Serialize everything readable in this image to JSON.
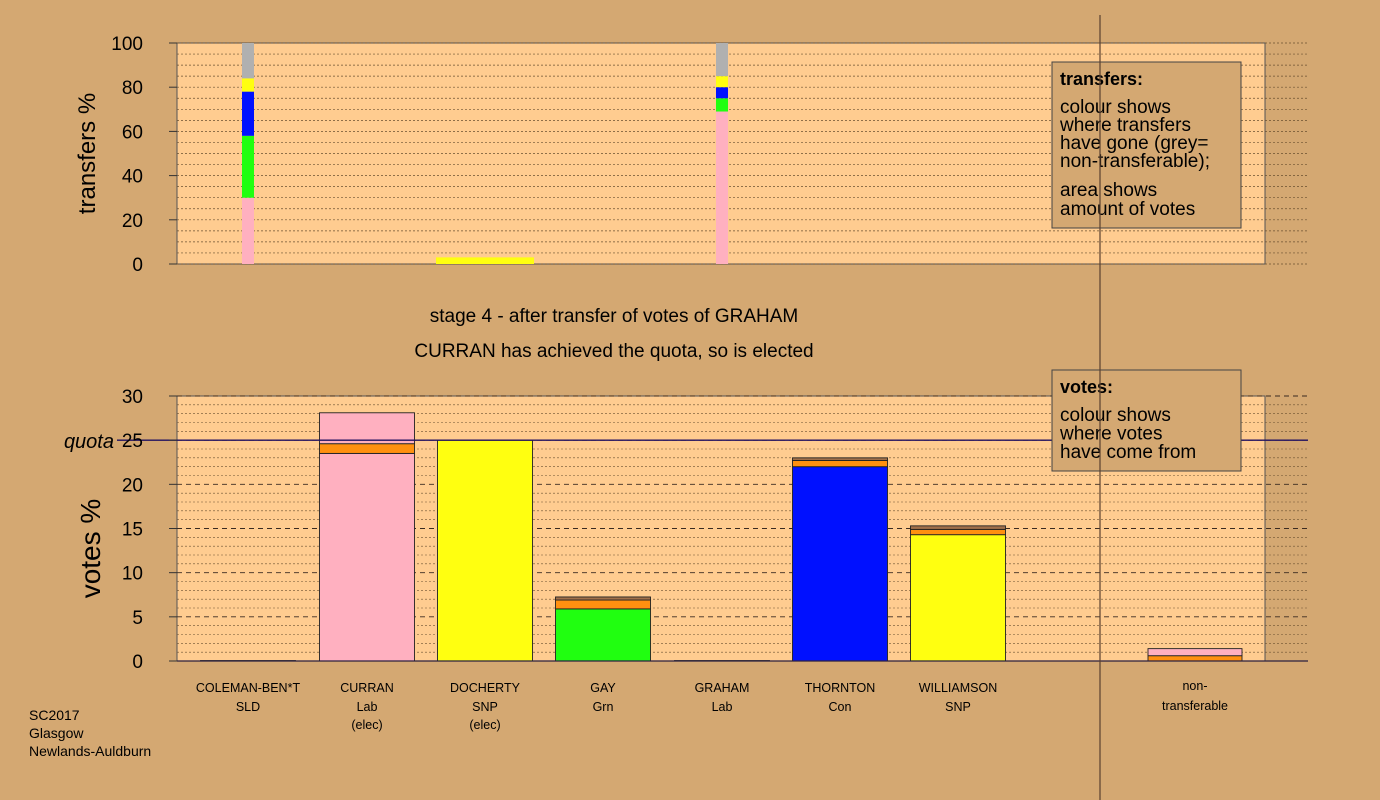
{
  "stage_title": "stage 4 - after transfer of votes of GRAHAM",
  "stage_subtitle": "CURRAN has achieved the quota, so is elected",
  "footer": [
    "SC2017",
    "Glasgow",
    "Newlands-Auldburn"
  ],
  "colors": {
    "background": "#d4a872",
    "plot_bg": "#ffcc90",
    "Lab": "#ffb0c0",
    "SNP": "#ffff10",
    "Grn": "#20ff10",
    "Con": "#0010ff",
    "SLD": "#ff9010",
    "orange": "#ff9010",
    "nontransferable": "#b0b0b0",
    "brown": "#a0704a",
    "quota_line": "#201060"
  },
  "chart_data": [
    {
      "type": "bar",
      "ylabel": "transfers %",
      "ylim": [
        0,
        100
      ],
      "yticks": [
        0,
        20,
        40,
        60,
        80,
        100
      ],
      "grid": true,
      "legend": {
        "title": "transfers:",
        "lines1": [
          "colour shows",
          "where transfers",
          "have gone (grey=",
          "non-transferable);"
        ],
        "lines2": [
          "area shows",
          "amount of votes"
        ]
      },
      "columns": [
        {
          "candidate": "COLEMAN-BEN*T",
          "segments": [
            {
              "party": "Lab",
              "value": 30
            },
            {
              "party": "Grn",
              "value": 28
            },
            {
              "party": "Con",
              "value": 20
            },
            {
              "party": "SNP",
              "value": 6
            },
            {
              "party": "nontransferable",
              "value": 16
            }
          ]
        },
        {
          "candidate": "CURRAN",
          "segments": []
        },
        {
          "candidate": "DOCHERTY",
          "segments": [
            {
              "party": "SNP",
              "value": 3
            }
          ]
        },
        {
          "candidate": "GAY",
          "segments": []
        },
        {
          "candidate": "GRAHAM",
          "segments": [
            {
              "party": "Lab",
              "value": 69
            },
            {
              "party": "Grn",
              "value": 6
            },
            {
              "party": "Con",
              "value": 5
            },
            {
              "party": "SNP",
              "value": 5
            },
            {
              "party": "nontransferable",
              "value": 15
            }
          ]
        },
        {
          "candidate": "THORNTON",
          "segments": []
        },
        {
          "candidate": "WILLIAMSON",
          "segments": []
        }
      ]
    },
    {
      "type": "bar",
      "ylabel": "votes %",
      "ylim": [
        0,
        30
      ],
      "yticks": [
        0,
        5,
        10,
        15,
        20,
        25,
        30
      ],
      "quota": 25,
      "quota_label": "quota",
      "legend": {
        "title": "votes:",
        "lines1": [
          "colour shows",
          "where votes",
          "have come from"
        ]
      },
      "categories": [
        {
          "name": "COLEMAN-BEN*T",
          "party": "SLD",
          "status": "",
          "color": "SLD",
          "segments": [
            {
              "party": "SLD",
              "value": 0.05
            }
          ]
        },
        {
          "name": "CURRAN",
          "party": "Lab",
          "status": "(elec)",
          "color": "Lab",
          "segments": [
            {
              "party": "Lab",
              "value": 23.5
            },
            {
              "party": "orange",
              "value": 1.1
            },
            {
              "party": "Lab",
              "value": 3.5
            }
          ]
        },
        {
          "name": "DOCHERTY",
          "party": "SNP",
          "status": "(elec)",
          "color": "SNP",
          "segments": [
            {
              "party": "SNP",
              "value": 25
            }
          ]
        },
        {
          "name": "GAY",
          "party": "Grn",
          "status": "",
          "color": "Grn",
          "segments": [
            {
              "party": "Grn",
              "value": 5.9
            },
            {
              "party": "orange",
              "value": 1.0
            },
            {
              "party": "brown",
              "value": 0.35
            }
          ]
        },
        {
          "name": "GRAHAM",
          "party": "Lab",
          "status": "",
          "color": "Lab",
          "segments": [
            {
              "party": "Lab",
              "value": 0.05
            }
          ]
        },
        {
          "name": "THORNTON",
          "party": "Con",
          "status": "",
          "color": "Con",
          "segments": [
            {
              "party": "Con",
              "value": 22.0
            },
            {
              "party": "orange",
              "value": 0.7
            },
            {
              "party": "brown",
              "value": 0.3
            }
          ]
        },
        {
          "name": "WILLIAMSON",
          "party": "SNP",
          "status": "",
          "color": "SNP",
          "segments": [
            {
              "party": "SNP",
              "value": 14.3
            },
            {
              "party": "orange",
              "value": 0.6
            },
            {
              "party": "brown",
              "value": 0.4
            }
          ]
        }
      ],
      "nontransferable": {
        "label_lines": [
          "non-",
          "transferable"
        ],
        "segments": [
          {
            "party": "SLD",
            "value": 0.6
          },
          {
            "party": "Lab",
            "value": 0.8
          }
        ]
      }
    }
  ]
}
